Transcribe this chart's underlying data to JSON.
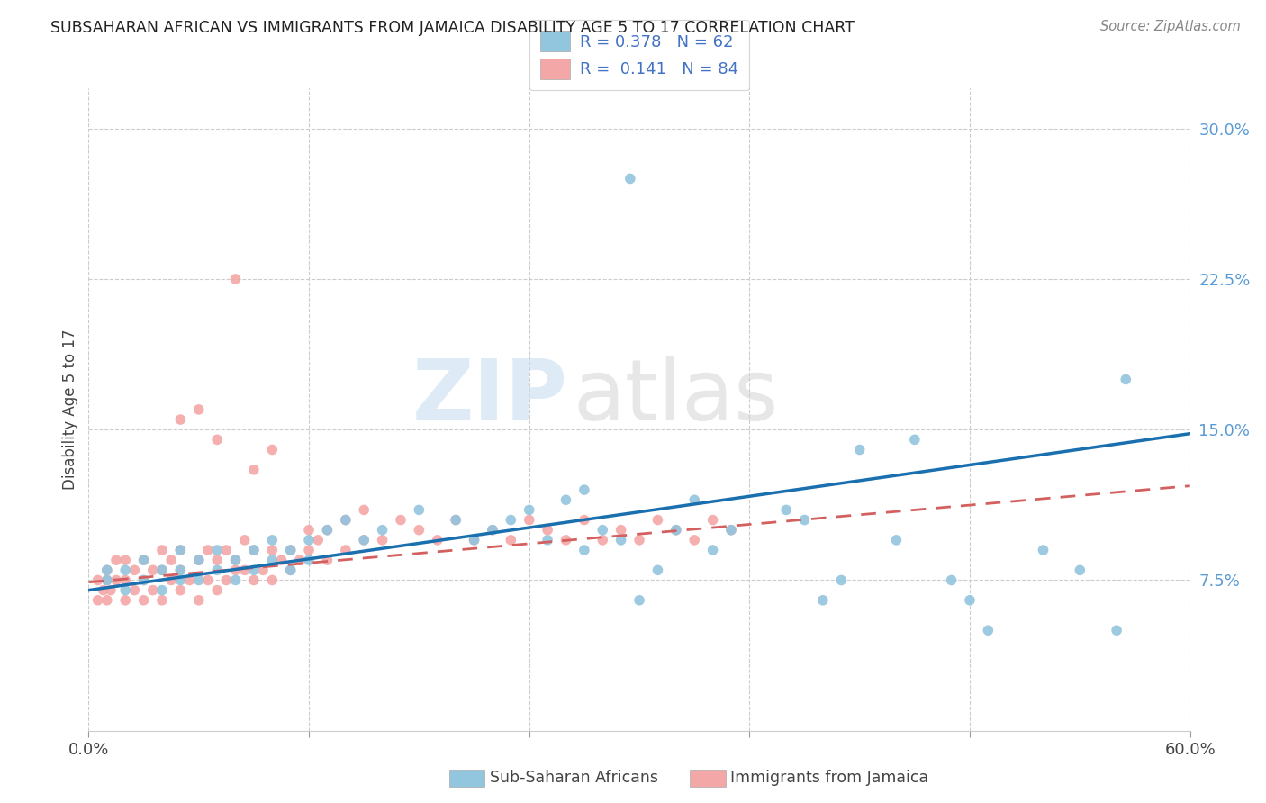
{
  "title": "SUBSAHARAN AFRICAN VS IMMIGRANTS FROM JAMAICA DISABILITY AGE 5 TO 17 CORRELATION CHART",
  "source": "Source: ZipAtlas.com",
  "ylabel": "Disability Age 5 to 17",
  "color_blue": "#92c5de",
  "color_pink": "#f4a7a7",
  "color_blue_line": "#1a6faf",
  "color_pink_line": "#d45f5f",
  "watermark_zip": "ZIP",
  "watermark_atlas": "atlas",
  "xlim": [
    0.0,
    0.6
  ],
  "ylim": [
    0.0,
    0.32
  ],
  "yticks": [
    0.075,
    0.15,
    0.225,
    0.3
  ],
  "ytick_labels": [
    "7.5%",
    "15.0%",
    "22.5%",
    "30.0%"
  ],
  "xticks": [
    0.0,
    0.12,
    0.24,
    0.36,
    0.48,
    0.6
  ],
  "blue_line_x": [
    0.0,
    0.6
  ],
  "blue_line_y": [
    0.07,
    0.148
  ],
  "pink_line_x": [
    0.0,
    0.6
  ],
  "pink_line_y": [
    0.074,
    0.122
  ],
  "blue_x": [
    0.295,
    0.01,
    0.01,
    0.02,
    0.02,
    0.03,
    0.03,
    0.04,
    0.04,
    0.05,
    0.05,
    0.05,
    0.06,
    0.06,
    0.07,
    0.07,
    0.08,
    0.08,
    0.09,
    0.09,
    0.1,
    0.1,
    0.11,
    0.11,
    0.12,
    0.12,
    0.13,
    0.14,
    0.15,
    0.16,
    0.18,
    0.2,
    0.21,
    0.22,
    0.23,
    0.24,
    0.25,
    0.26,
    0.27,
    0.27,
    0.28,
    0.29,
    0.3,
    0.31,
    0.32,
    0.33,
    0.34,
    0.35,
    0.38,
    0.39,
    0.4,
    0.41,
    0.42,
    0.44,
    0.45,
    0.47,
    0.48,
    0.49,
    0.52,
    0.54,
    0.56,
    0.565
  ],
  "blue_y": [
    0.275,
    0.075,
    0.08,
    0.07,
    0.08,
    0.075,
    0.085,
    0.08,
    0.07,
    0.09,
    0.075,
    0.08,
    0.085,
    0.075,
    0.09,
    0.08,
    0.085,
    0.075,
    0.09,
    0.08,
    0.095,
    0.085,
    0.09,
    0.08,
    0.095,
    0.085,
    0.1,
    0.105,
    0.095,
    0.1,
    0.11,
    0.105,
    0.095,
    0.1,
    0.105,
    0.11,
    0.095,
    0.115,
    0.12,
    0.09,
    0.1,
    0.095,
    0.065,
    0.08,
    0.1,
    0.115,
    0.09,
    0.1,
    0.11,
    0.105,
    0.065,
    0.075,
    0.14,
    0.095,
    0.145,
    0.075,
    0.065,
    0.05,
    0.09,
    0.08,
    0.05,
    0.175
  ],
  "pink_x": [
    0.005,
    0.005,
    0.008,
    0.01,
    0.01,
    0.01,
    0.012,
    0.015,
    0.015,
    0.02,
    0.02,
    0.02,
    0.025,
    0.025,
    0.03,
    0.03,
    0.03,
    0.035,
    0.035,
    0.04,
    0.04,
    0.04,
    0.045,
    0.045,
    0.05,
    0.05,
    0.05,
    0.055,
    0.06,
    0.06,
    0.065,
    0.065,
    0.07,
    0.07,
    0.075,
    0.075,
    0.08,
    0.08,
    0.085,
    0.085,
    0.09,
    0.09,
    0.095,
    0.1,
    0.1,
    0.105,
    0.11,
    0.11,
    0.115,
    0.12,
    0.12,
    0.125,
    0.13,
    0.13,
    0.14,
    0.14,
    0.15,
    0.15,
    0.16,
    0.17,
    0.18,
    0.19,
    0.2,
    0.21,
    0.22,
    0.23,
    0.24,
    0.25,
    0.26,
    0.27,
    0.28,
    0.29,
    0.3,
    0.31,
    0.32,
    0.33,
    0.34,
    0.35,
    0.05,
    0.06,
    0.07,
    0.08,
    0.09,
    0.1
  ],
  "pink_y": [
    0.065,
    0.075,
    0.07,
    0.065,
    0.075,
    0.08,
    0.07,
    0.075,
    0.085,
    0.065,
    0.075,
    0.085,
    0.07,
    0.08,
    0.065,
    0.075,
    0.085,
    0.07,
    0.08,
    0.065,
    0.08,
    0.09,
    0.075,
    0.085,
    0.07,
    0.08,
    0.09,
    0.075,
    0.065,
    0.085,
    0.075,
    0.09,
    0.07,
    0.085,
    0.075,
    0.09,
    0.08,
    0.085,
    0.08,
    0.095,
    0.075,
    0.09,
    0.08,
    0.075,
    0.09,
    0.085,
    0.08,
    0.09,
    0.085,
    0.1,
    0.09,
    0.095,
    0.085,
    0.1,
    0.09,
    0.105,
    0.095,
    0.11,
    0.095,
    0.105,
    0.1,
    0.095,
    0.105,
    0.095,
    0.1,
    0.095,
    0.105,
    0.1,
    0.095,
    0.105,
    0.095,
    0.1,
    0.095,
    0.105,
    0.1,
    0.095,
    0.105,
    0.1,
    0.155,
    0.16,
    0.145,
    0.225,
    0.13,
    0.14
  ]
}
